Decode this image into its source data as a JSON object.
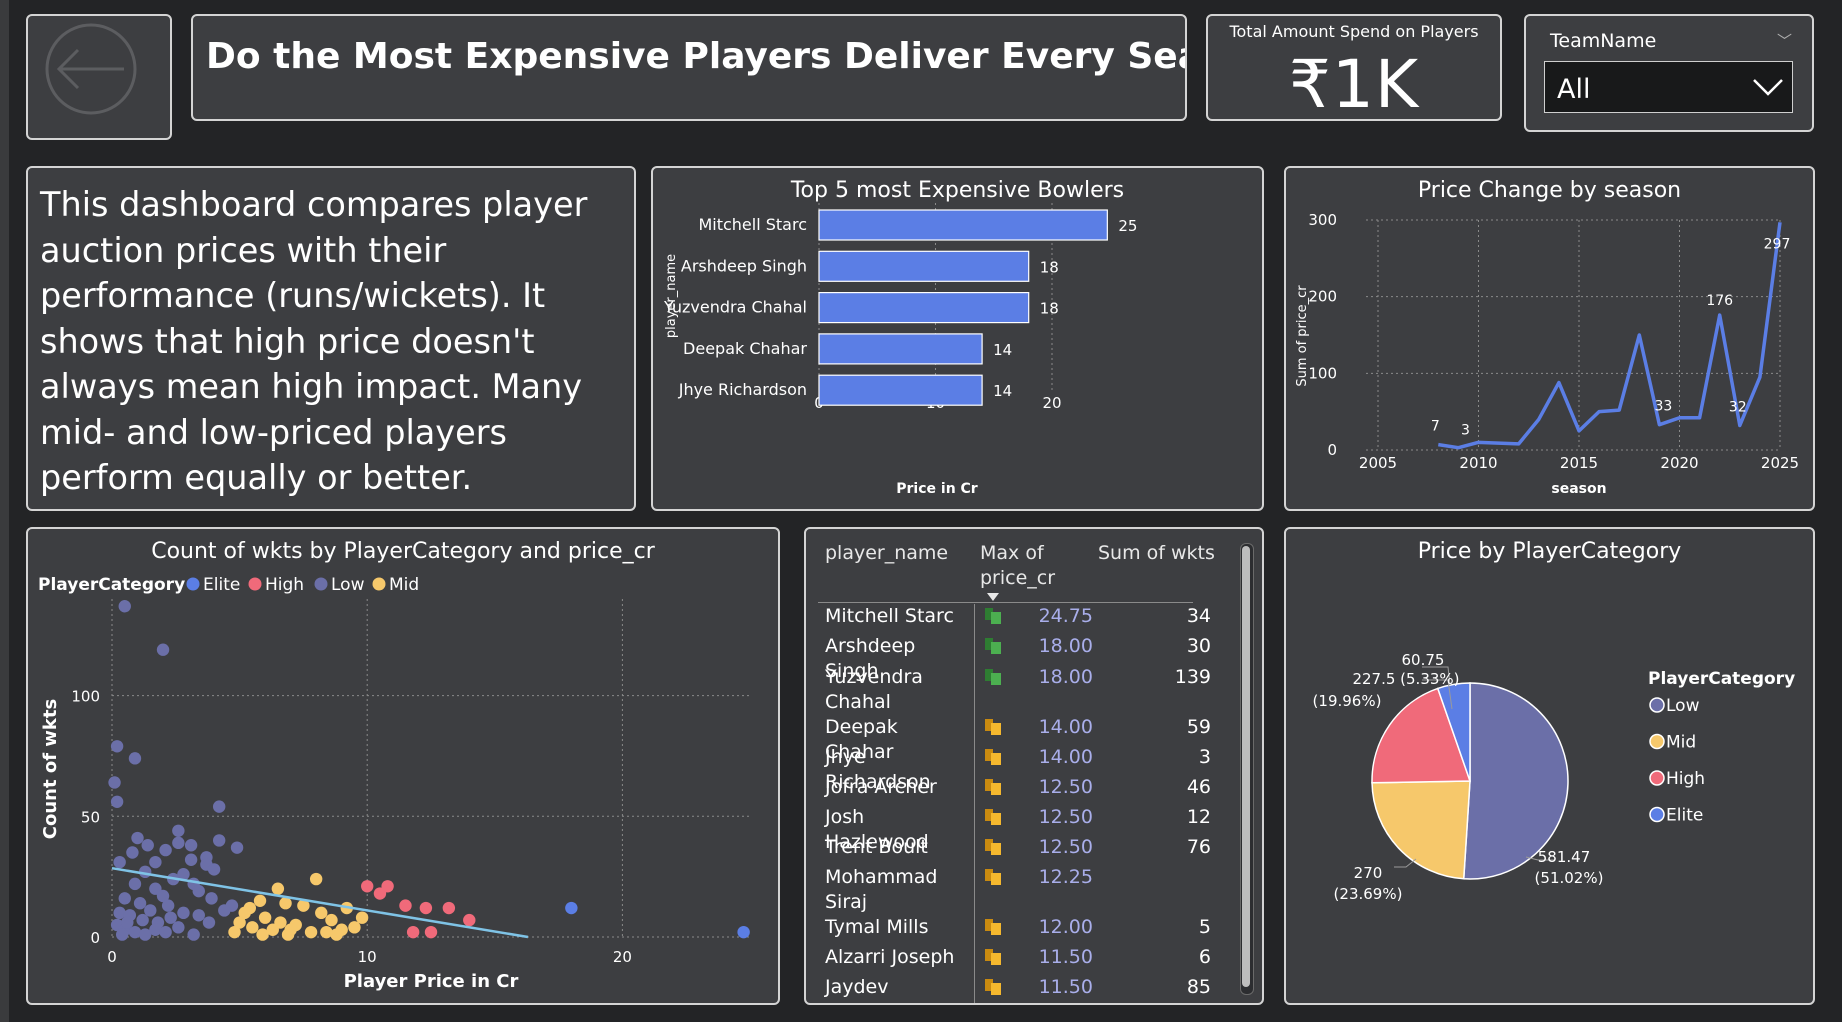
{
  "title": "Do the Most Expensive Players Deliver Every Season?",
  "kpi": {
    "caption": "Total Amount Spend on Players",
    "value": "₹1K"
  },
  "slicer": {
    "label": "TeamName",
    "selected": "All"
  },
  "description": "This dashboard compares player auction prices with their performance (runs/wickets). It shows that high price doesn't always mean high impact. Many mid- and low-priced players perform equally or better.",
  "colors": {
    "elite": "#5b7ee5",
    "high": "#f06a7a",
    "low": "#6b6fa8",
    "mid": "#f6c86b",
    "bar": "#5b7ee5",
    "line": "#5b7ee5",
    "trend": "#7fc3e6"
  },
  "table": {
    "headers": [
      "player_name",
      "Max of price_cr",
      "Sum of wkts"
    ],
    "rows": [
      {
        "name": "Mitchell Starc",
        "price": "24.75",
        "wkts": "34",
        "icon": "green-flag-icon"
      },
      {
        "name": "Arshdeep Singh",
        "price": "18.00",
        "wkts": "30",
        "icon": "green-flag-icon"
      },
      {
        "name": "Yuzvendra Chahal",
        "price": "18.00",
        "wkts": "139",
        "icon": "green-flag-icon"
      },
      {
        "name": "Deepak Chahar",
        "price": "14.00",
        "wkts": "59",
        "icon": "yellow-flag-icon"
      },
      {
        "name": "Jhye Richardson",
        "price": "14.00",
        "wkts": "3",
        "icon": "yellow-flag-icon"
      },
      {
        "name": "Jofra Archer",
        "price": "12.50",
        "wkts": "46",
        "icon": "yellow-flag-icon"
      },
      {
        "name": "Josh Hazlewood",
        "price": "12.50",
        "wkts": "12",
        "icon": "yellow-flag-icon"
      },
      {
        "name": "Trent Boult",
        "price": "12.50",
        "wkts": "76",
        "icon": "yellow-flag-icon"
      },
      {
        "name": "Mohammad Siraj",
        "price": "12.25",
        "wkts": "",
        "icon": "yellow-flag-icon"
      },
      {
        "name": "Tymal Mills",
        "price": "12.00",
        "wkts": "5",
        "icon": "yellow-flag-icon"
      },
      {
        "name": "Alzarri Joseph",
        "price": "11.50",
        "wkts": "6",
        "icon": "yellow-flag-icon"
      },
      {
        "name": "Jaydev Unadkat",
        "price": "11.50",
        "wkts": "85",
        "icon": "yellow-flag-icon"
      }
    ]
  },
  "chart_data": [
    {
      "type": "bar",
      "title": "Top 5 most Expensive Bowlers",
      "xlabel": "Price in Cr",
      "ylabel": "player_name",
      "categories": [
        "Mitchell Starc",
        "Arshdeep Singh",
        "Yuzvendra Chahal",
        "Deepak Chahar",
        "Jhye Richardson"
      ],
      "values": [
        24.75,
        18,
        18,
        14,
        14
      ],
      "data_labels": [
        "25",
        "18",
        "18",
        "14",
        "14"
      ],
      "xlim": [
        0,
        25
      ],
      "xticks": [
        0,
        10,
        20
      ],
      "grid": true
    },
    {
      "type": "line",
      "title": "Price Change by season",
      "xlabel": "season",
      "ylabel": "Sum of price_cr",
      "x": [
        2008,
        2009,
        2010,
        2011,
        2012,
        2013,
        2014,
        2015,
        2016,
        2017,
        2018,
        2019,
        2020,
        2021,
        2022,
        2023,
        2024,
        2025
      ],
      "y": [
        7,
        3,
        10,
        9,
        8,
        40,
        88,
        25,
        50,
        52,
        150,
        33,
        42,
        42,
        176,
        32,
        95,
        297
      ],
      "data_labels": [
        {
          "x": 2008,
          "label": "7"
        },
        {
          "x": 2009,
          "label": "3"
        },
        {
          "x": 2019,
          "label": "33"
        },
        {
          "x": 2022,
          "label": "176"
        },
        {
          "x": 2023,
          "label": "32"
        },
        {
          "x": 2025,
          "label": "297"
        }
      ],
      "xlim": [
        2005,
        2025
      ],
      "ylim": [
        0,
        300
      ],
      "xticks": [
        2005,
        2010,
        2015,
        2020,
        2025
      ],
      "yticks": [
        0,
        100,
        200,
        300
      ],
      "grid": true
    },
    {
      "type": "scatter",
      "title": "Count of wkts by PlayerCategory and price_cr",
      "xlabel": "Player Price in Cr",
      "ylabel": "Count of wkts",
      "legend_title": "PlayerCategory",
      "legend_position": "top-left",
      "xlim": [
        0,
        25
      ],
      "ylim": [
        0,
        140
      ],
      "xticks": [
        0,
        10,
        20
      ],
      "yticks": [
        0,
        50,
        100
      ],
      "trendline": {
        "x": [
          0,
          16.3
        ],
        "y": [
          28.5,
          0
        ]
      },
      "series": [
        {
          "name": "Elite",
          "points": [
            [
              18,
              12
            ],
            [
              24.75,
              2
            ]
          ]
        },
        {
          "name": "High",
          "points": [
            [
              10,
              21
            ],
            [
              10.8,
              21
            ],
            [
              11.5,
              13
            ],
            [
              12.3,
              12
            ],
            [
              13.2,
              12
            ],
            [
              14,
              7
            ],
            [
              10.5,
              18
            ],
            [
              11.8,
              2
            ],
            [
              12.5,
              2
            ]
          ]
        },
        {
          "name": "Low",
          "points": [
            [
              0.5,
              137
            ],
            [
              2,
              119
            ],
            [
              0.2,
              79
            ],
            [
              0.9,
              74
            ],
            [
              0.1,
              64
            ],
            [
              0.2,
              56
            ],
            [
              4.2,
              54
            ],
            [
              2.6,
              44
            ],
            [
              1,
              41
            ],
            [
              1.4,
              38
            ],
            [
              2.1,
              36
            ],
            [
              2.6,
              39
            ],
            [
              3.1,
              38
            ],
            [
              3.7,
              33
            ],
            [
              4.2,
              40
            ],
            [
              3.1,
              32
            ],
            [
              4.9,
              37
            ],
            [
              0.8,
              35
            ],
            [
              1.7,
              31
            ],
            [
              3.7,
              30
            ],
            [
              0.3,
              31
            ],
            [
              4,
              28
            ],
            [
              2.4,
              24
            ],
            [
              0.9,
              22
            ],
            [
              1.3,
              27
            ],
            [
              2.8,
              26
            ],
            [
              3.2,
              22
            ],
            [
              1.7,
              20
            ],
            [
              3.4,
              19
            ],
            [
              4.7,
              13
            ],
            [
              0.5,
              16
            ],
            [
              1.1,
              14
            ],
            [
              1.5,
              11
            ],
            [
              2,
              17
            ],
            [
              0.3,
              10
            ],
            [
              0.7,
              9
            ],
            [
              1.2,
              7
            ],
            [
              1.8,
              6
            ],
            [
              2.3,
              8
            ],
            [
              2.8,
              10
            ],
            [
              3.4,
              9
            ],
            [
              0.2,
              5
            ],
            [
              0.5,
              3
            ],
            [
              0.9,
              2
            ],
            [
              1.3,
              1
            ],
            [
              1.7,
              3
            ],
            [
              2.1,
              2
            ],
            [
              2.6,
              4
            ],
            [
              3.2,
              1
            ],
            [
              3.8,
              6
            ],
            [
              4.4,
              11
            ],
            [
              2.2,
              13
            ],
            [
              3.9,
              16
            ],
            [
              0.4,
              1
            ],
            [
              0.6,
              6
            ]
          ]
        },
        {
          "name": "Mid",
          "points": [
            [
              6.5,
              20
            ],
            [
              8,
              24
            ],
            [
              5.8,
              15
            ],
            [
              6.8,
              14
            ],
            [
              7.5,
              13
            ],
            [
              8.2,
              10
            ],
            [
              9.2,
              12
            ],
            [
              5.2,
              10
            ],
            [
              6,
              8
            ],
            [
              6.6,
              6
            ],
            [
              7.2,
              5
            ],
            [
              8.6,
              7
            ],
            [
              5.5,
              4
            ],
            [
              6.3,
              3
            ],
            [
              7,
              3
            ],
            [
              7.8,
              2
            ],
            [
              8.4,
              2
            ],
            [
              9,
              3
            ],
            [
              9.5,
              4
            ],
            [
              5,
              6
            ],
            [
              5.9,
              1
            ],
            [
              6.9,
              1
            ],
            [
              8.8,
              1
            ],
            [
              9.8,
              8
            ],
            [
              5.4,
              12
            ],
            [
              4.8,
              2
            ]
          ]
        }
      ]
    },
    {
      "type": "pie",
      "title": "Price by PlayerCategory",
      "legend_title": "PlayerCategory",
      "legend_position": "right",
      "slices": [
        {
          "name": "Low",
          "value": 581.47,
          "label": "581.47",
          "percent_label": "(51.02%)"
        },
        {
          "name": "Mid",
          "value": 270,
          "label": "270",
          "percent_label": "(23.69%)"
        },
        {
          "name": "High",
          "value": 227.5,
          "label": "227.5",
          "percent_label": "(19.96%)"
        },
        {
          "name": "Elite",
          "value": 60.75,
          "label": "60.75",
          "percent_label": "(5.33%)"
        }
      ]
    }
  ]
}
